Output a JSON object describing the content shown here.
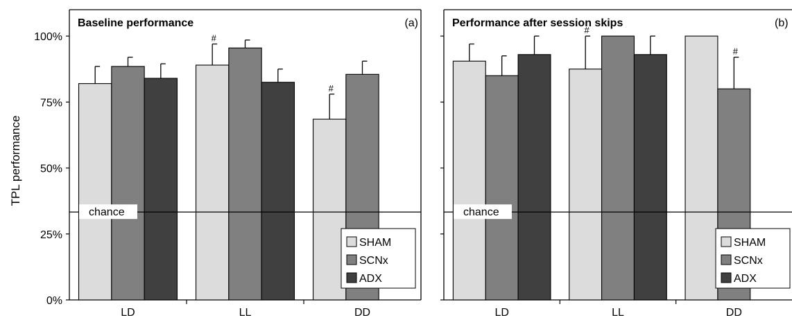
{
  "figure": {
    "ylabel": "TPL performance",
    "yticks": [
      "0%",
      "25%",
      "50%",
      "75%",
      "100%"
    ],
    "legend": [
      {
        "name": "SHAM",
        "color": "#dcdcdc"
      },
      {
        "name": "SCNx",
        "color": "#808080"
      },
      {
        "name": "ADX",
        "color": "#404040"
      }
    ]
  },
  "chart_data": [
    {
      "type": "bar",
      "title": "Baseline performance",
      "panel_label": "(a)",
      "categories": [
        "LD",
        "LL",
        "DD"
      ],
      "ylim": [
        0,
        1.1
      ],
      "chance_level": 0.333,
      "chance_label": "chance",
      "series": [
        {
          "name": "SHAM",
          "values": [
            0.82,
            0.89,
            0.685
          ],
          "errors": [
            0.065,
            0.08,
            0.095
          ],
          "markers": [
            "",
            "#",
            "#"
          ]
        },
        {
          "name": "SCNx",
          "values": [
            0.885,
            0.955,
            0.855
          ],
          "errors": [
            0.035,
            0.03,
            0.05
          ],
          "markers": [
            "",
            "",
            ""
          ]
        },
        {
          "name": "ADX",
          "values": [
            0.84,
            0.825,
            null
          ],
          "errors": [
            0.055,
            0.05,
            null
          ],
          "markers": [
            "",
            "",
            ""
          ]
        }
      ],
      "legend_position": "bottom-right",
      "grid": false
    },
    {
      "type": "bar",
      "title": "Performance after session skips",
      "panel_label": "(b)",
      "categories": [
        "LD",
        "LL",
        "DD"
      ],
      "ylim": [
        0,
        1.1
      ],
      "chance_level": 0.333,
      "chance_label": "chance",
      "series": [
        {
          "name": "SHAM",
          "values": [
            0.905,
            0.875,
            1.0
          ],
          "errors": [
            0.065,
            0.125,
            0
          ],
          "markers": [
            "",
            "#",
            ""
          ]
        },
        {
          "name": "SCNx",
          "values": [
            0.85,
            1.0,
            0.8
          ],
          "errors": [
            0.075,
            0,
            0.12
          ],
          "markers": [
            "",
            "",
            "#"
          ]
        },
        {
          "name": "ADX",
          "values": [
            0.93,
            0.93,
            null
          ],
          "errors": [
            0.07,
            0.07,
            null
          ],
          "markers": [
            "",
            "",
            ""
          ]
        }
      ],
      "legend_position": "bottom-right",
      "grid": false
    }
  ]
}
